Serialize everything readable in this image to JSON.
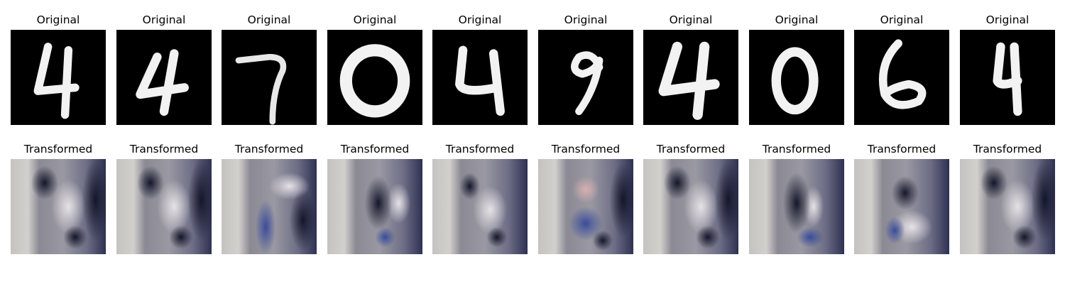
{
  "rows": {
    "original": {
      "panels": [
        {
          "title": "Original",
          "digit": "4"
        },
        {
          "title": "Original",
          "digit": "4"
        },
        {
          "title": "Original",
          "digit": "7"
        },
        {
          "title": "Original",
          "digit": "0"
        },
        {
          "title": "Original",
          "digit": "4"
        },
        {
          "title": "Original",
          "digit": "9"
        },
        {
          "title": "Original",
          "digit": "4"
        },
        {
          "title": "Original",
          "digit": "0"
        },
        {
          "title": "Original",
          "digit": "6"
        },
        {
          "title": "Original",
          "digit": "4"
        }
      ]
    },
    "transformed": {
      "panels": [
        {
          "title": "Transformed"
        },
        {
          "title": "Transformed"
        },
        {
          "title": "Transformed"
        },
        {
          "title": "Transformed"
        },
        {
          "title": "Transformed"
        },
        {
          "title": "Transformed"
        },
        {
          "title": "Transformed"
        },
        {
          "title": "Transformed"
        },
        {
          "title": "Transformed"
        },
        {
          "title": "Transformed"
        }
      ]
    }
  },
  "colors": {
    "digit_background": "#000000",
    "digit_stroke": "#f2f2f2",
    "transformed_light": "#c9c6c4",
    "transformed_mid": "#8f8c97",
    "transformed_dark": "#2e3050",
    "transformed_blue": "#4a5fa6"
  }
}
